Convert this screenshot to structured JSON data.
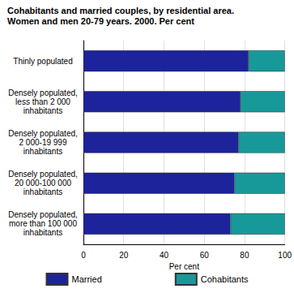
{
  "chart_data": {
    "type": "bar",
    "title": "Cohabitants and married couples, by residential area.",
    "subtitle": "Women and men 20-79 years. 2000. Per cent",
    "orientation": "horizontal",
    "stacked": true,
    "categories": [
      "Thinly populated",
      "Densely populated,\nless than 2 000\ninhabitants",
      "Densely populated,\n2 000-19 999\ninhabitants",
      "Densely populated,\n20 000-100 000\ninhabitants",
      "Densely populated,\nmore than 100 000\ninhabitants"
    ],
    "series": [
      {
        "name": "Married",
        "color": "#1c239b",
        "values": [
          82,
          78,
          77,
          75,
          73
        ]
      },
      {
        "name": "Cohabitants",
        "color": "#17999a",
        "values": [
          18,
          22,
          23,
          25,
          27
        ]
      }
    ],
    "xlabel": "Per cent",
    "xlim": [
      0,
      100
    ],
    "xticks": [
      0,
      20,
      40,
      60,
      80,
      100
    ],
    "grid": true,
    "legend": "bottom"
  }
}
